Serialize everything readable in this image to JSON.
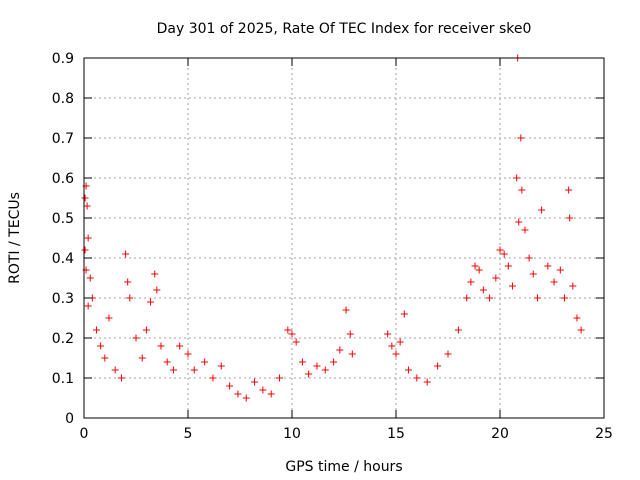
{
  "chart_data": {
    "type": "scatter",
    "title": "Day 301 of 2025, Rate Of TEC Index for receiver ske0",
    "xlabel": "GPS time / hours",
    "ylabel": "ROTI / TECUs",
    "xlim": [
      0,
      25
    ],
    "ylim": [
      0,
      0.9
    ],
    "xticks": [
      0,
      5,
      10,
      15,
      20,
      25
    ],
    "xtick_labels": [
      "0",
      "5",
      "10",
      "15",
      "20",
      "25"
    ],
    "yticks": [
      0,
      0.1,
      0.2,
      0.3,
      0.4,
      0.5,
      0.6,
      0.7,
      0.8,
      0.9
    ],
    "ytick_labels": [
      "0",
      "0.1",
      "0.2",
      "0.3",
      "0.4",
      "0.5",
      "0.6",
      "0.7",
      "0.8",
      "0.9"
    ],
    "grid": true,
    "marker": "+",
    "color": "#ff0000",
    "series": [
      {
        "name": "ROTI",
        "points": [
          [
            0.05,
            0.55
          ],
          [
            0.1,
            0.58
          ],
          [
            0.15,
            0.53
          ],
          [
            0.2,
            0.45
          ],
          [
            0.05,
            0.42
          ],
          [
            0.1,
            0.37
          ],
          [
            0.3,
            0.35
          ],
          [
            0.4,
            0.3
          ],
          [
            0.2,
            0.28
          ],
          [
            0.6,
            0.22
          ],
          [
            0.8,
            0.18
          ],
          [
            1.0,
            0.15
          ],
          [
            1.2,
            0.25
          ],
          [
            1.5,
            0.12
          ],
          [
            1.8,
            0.1
          ],
          [
            2.0,
            0.41
          ],
          [
            2.1,
            0.34
          ],
          [
            2.2,
            0.3
          ],
          [
            2.5,
            0.2
          ],
          [
            2.8,
            0.15
          ],
          [
            3.0,
            0.22
          ],
          [
            3.2,
            0.29
          ],
          [
            3.4,
            0.36
          ],
          [
            3.5,
            0.32
          ],
          [
            3.7,
            0.18
          ],
          [
            4.0,
            0.14
          ],
          [
            4.3,
            0.12
          ],
          [
            4.6,
            0.18
          ],
          [
            5.0,
            0.16
          ],
          [
            5.3,
            0.12
          ],
          [
            5.8,
            0.14
          ],
          [
            6.2,
            0.1
          ],
          [
            6.6,
            0.13
          ],
          [
            7.0,
            0.08
          ],
          [
            7.4,
            0.06
          ],
          [
            7.8,
            0.05
          ],
          [
            8.2,
            0.09
          ],
          [
            8.6,
            0.07
          ],
          [
            9.0,
            0.06
          ],
          [
            9.4,
            0.1
          ],
          [
            9.8,
            0.22
          ],
          [
            10.0,
            0.21
          ],
          [
            10.2,
            0.19
          ],
          [
            10.5,
            0.14
          ],
          [
            10.8,
            0.11
          ],
          [
            11.2,
            0.13
          ],
          [
            11.6,
            0.12
          ],
          [
            12.0,
            0.14
          ],
          [
            12.3,
            0.17
          ],
          [
            12.6,
            0.27
          ],
          [
            12.8,
            0.21
          ],
          [
            12.9,
            0.16
          ],
          [
            14.6,
            0.21
          ],
          [
            14.8,
            0.18
          ],
          [
            15.0,
            0.16
          ],
          [
            15.2,
            0.19
          ],
          [
            15.4,
            0.26
          ],
          [
            15.6,
            0.12
          ],
          [
            16.0,
            0.1
          ],
          [
            16.5,
            0.09
          ],
          [
            17.0,
            0.13
          ],
          [
            17.5,
            0.16
          ],
          [
            18.0,
            0.22
          ],
          [
            18.4,
            0.3
          ],
          [
            18.6,
            0.34
          ],
          [
            18.8,
            0.38
          ],
          [
            19.0,
            0.37
          ],
          [
            19.2,
            0.32
          ],
          [
            19.5,
            0.3
          ],
          [
            19.8,
            0.35
          ],
          [
            20.0,
            0.42
          ],
          [
            20.2,
            0.41
          ],
          [
            20.4,
            0.38
          ],
          [
            20.6,
            0.33
          ],
          [
            20.8,
            0.6
          ],
          [
            20.85,
            0.9
          ],
          [
            20.9,
            0.49
          ],
          [
            21.0,
            0.7
          ],
          [
            21.05,
            0.57
          ],
          [
            21.2,
            0.47
          ],
          [
            21.4,
            0.4
          ],
          [
            21.6,
            0.36
          ],
          [
            21.8,
            0.3
          ],
          [
            22.0,
            0.52
          ],
          [
            22.3,
            0.38
          ],
          [
            22.6,
            0.34
          ],
          [
            22.9,
            0.37
          ],
          [
            23.1,
            0.3
          ],
          [
            23.3,
            0.57
          ],
          [
            23.35,
            0.5
          ],
          [
            23.5,
            0.33
          ],
          [
            23.7,
            0.25
          ],
          [
            23.9,
            0.22
          ]
        ]
      }
    ]
  }
}
